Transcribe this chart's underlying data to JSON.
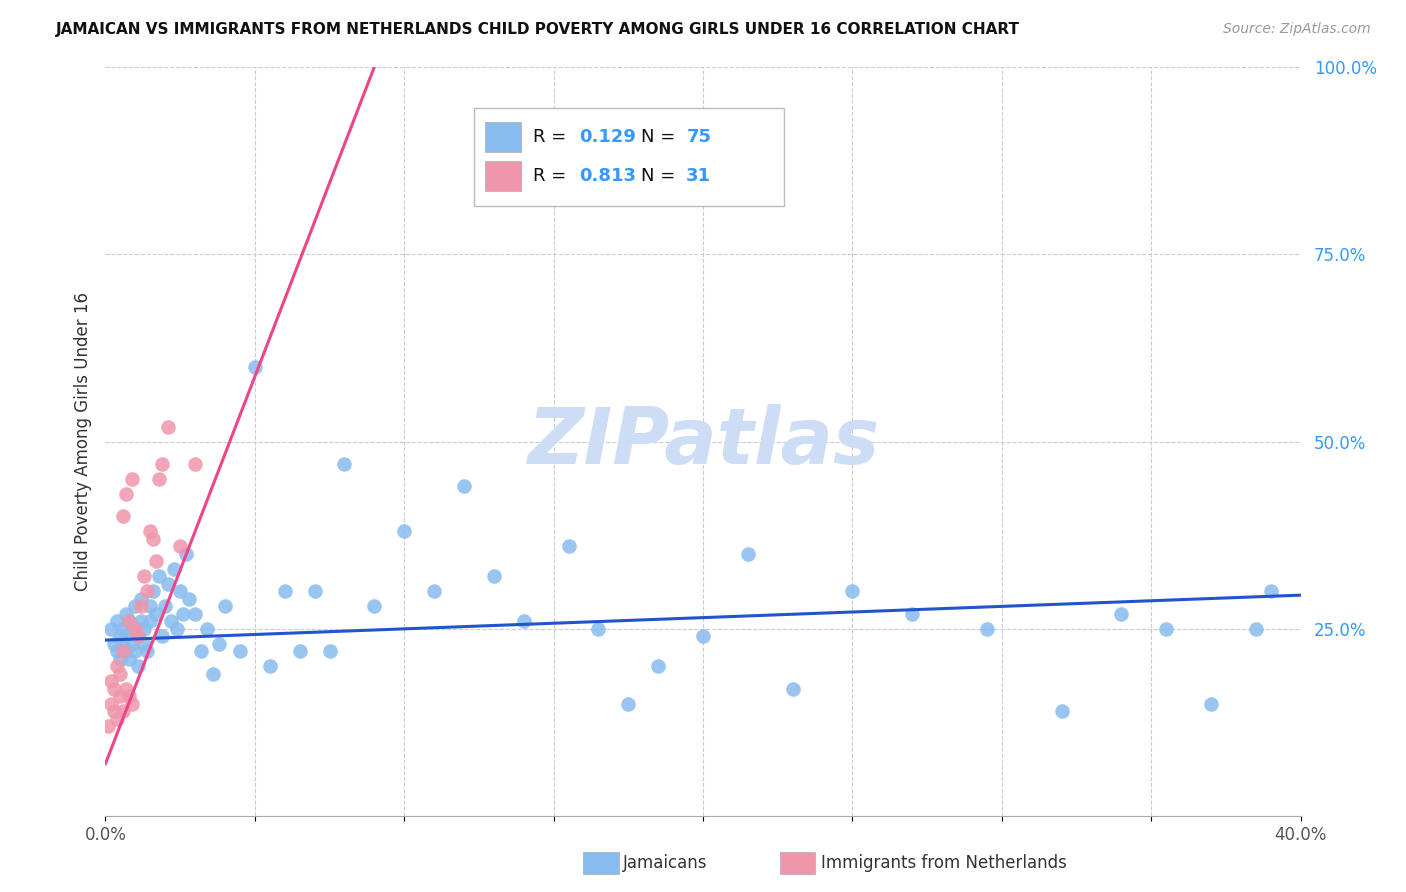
{
  "title": "JAMAICAN VS IMMIGRANTS FROM NETHERLANDS CHILD POVERTY AMONG GIRLS UNDER 16 CORRELATION CHART",
  "source": "Source: ZipAtlas.com",
  "ylabel": "Child Poverty Among Girls Under 16",
  "xlim": [
    0.0,
    0.4
  ],
  "ylim": [
    0.0,
    1.0
  ],
  "blue_color": "#88bbee",
  "pink_color": "#f096aa",
  "blue_line_color": "#2255cc",
  "pink_line_color": "#ee4488",
  "r_blue": "0.129",
  "n_blue": "75",
  "r_pink": "0.813",
  "n_pink": "31",
  "legend_val_color": "#3399ff",
  "watermark": "ZIPatlas",
  "watermark_color": "#ccddf5",
  "blue_scatter_x": [
    0.002,
    0.003,
    0.004,
    0.004,
    0.005,
    0.005,
    0.006,
    0.006,
    0.007,
    0.007,
    0.007,
    0.008,
    0.008,
    0.009,
    0.009,
    0.01,
    0.01,
    0.011,
    0.011,
    0.012,
    0.012,
    0.013,
    0.013,
    0.014,
    0.015,
    0.015,
    0.016,
    0.017,
    0.018,
    0.019,
    0.02,
    0.021,
    0.022,
    0.023,
    0.024,
    0.025,
    0.026,
    0.027,
    0.028,
    0.03,
    0.032,
    0.034,
    0.036,
    0.038,
    0.04,
    0.045,
    0.05,
    0.055,
    0.06,
    0.065,
    0.07,
    0.075,
    0.08,
    0.09,
    0.1,
    0.11,
    0.12,
    0.13,
    0.14,
    0.155,
    0.165,
    0.175,
    0.185,
    0.2,
    0.215,
    0.23,
    0.25,
    0.27,
    0.295,
    0.32,
    0.34,
    0.355,
    0.37,
    0.385,
    0.39
  ],
  "blue_scatter_y": [
    0.25,
    0.23,
    0.22,
    0.26,
    0.24,
    0.21,
    0.23,
    0.25,
    0.22,
    0.24,
    0.27,
    0.21,
    0.26,
    0.23,
    0.25,
    0.22,
    0.28,
    0.24,
    0.2,
    0.26,
    0.29,
    0.23,
    0.25,
    0.22,
    0.28,
    0.26,
    0.3,
    0.27,
    0.32,
    0.24,
    0.28,
    0.31,
    0.26,
    0.33,
    0.25,
    0.3,
    0.27,
    0.35,
    0.29,
    0.27,
    0.22,
    0.25,
    0.19,
    0.23,
    0.28,
    0.22,
    0.6,
    0.2,
    0.3,
    0.22,
    0.3,
    0.22,
    0.47,
    0.28,
    0.38,
    0.3,
    0.44,
    0.32,
    0.26,
    0.36,
    0.25,
    0.15,
    0.2,
    0.24,
    0.35,
    0.17,
    0.3,
    0.27,
    0.25,
    0.14,
    0.27,
    0.25,
    0.15,
    0.25,
    0.3
  ],
  "pink_scatter_x": [
    0.001,
    0.002,
    0.002,
    0.003,
    0.003,
    0.004,
    0.004,
    0.005,
    0.005,
    0.006,
    0.006,
    0.006,
    0.007,
    0.007,
    0.008,
    0.008,
    0.009,
    0.009,
    0.01,
    0.011,
    0.012,
    0.013,
    0.014,
    0.015,
    0.016,
    0.017,
    0.018,
    0.019,
    0.021,
    0.025,
    0.03
  ],
  "pink_scatter_y": [
    0.12,
    0.15,
    0.18,
    0.14,
    0.17,
    0.13,
    0.2,
    0.16,
    0.19,
    0.14,
    0.22,
    0.4,
    0.17,
    0.43,
    0.16,
    0.26,
    0.15,
    0.45,
    0.25,
    0.24,
    0.28,
    0.32,
    0.3,
    0.38,
    0.37,
    0.34,
    0.45,
    0.47,
    0.52,
    0.36,
    0.47
  ],
  "pink_trend_x0": 0.0,
  "pink_trend_y0": 0.07,
  "pink_trend_x1": 0.09,
  "pink_trend_y1": 1.0,
  "blue_trend_x0": 0.0,
  "blue_trend_y0": 0.235,
  "blue_trend_x1": 0.4,
  "blue_trend_y1": 0.295
}
